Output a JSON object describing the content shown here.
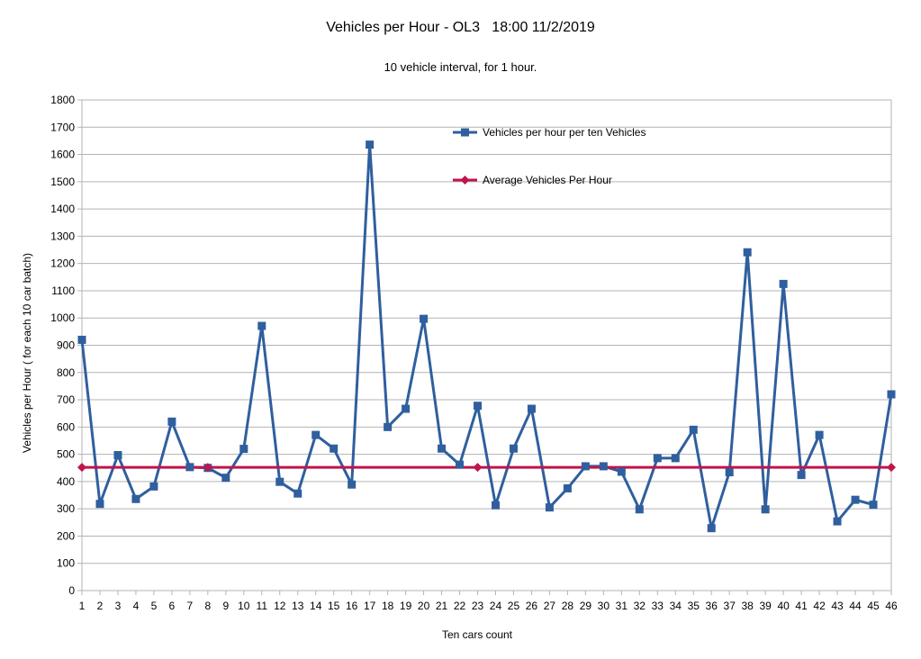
{
  "chart_data": {
    "type": "line",
    "title": "Vehicles per Hour - OL3   18:00 11/2/2019",
    "subtitle": "10 vehicle interval, for 1 hour.",
    "xlabel": "Ten cars count",
    "ylabel": "Vehicles per Hour ( for each 10 car batch)",
    "ylim": [
      0,
      1800
    ],
    "y_ticks": [
      0,
      100,
      200,
      300,
      400,
      500,
      600,
      700,
      800,
      900,
      1000,
      1100,
      1200,
      1300,
      1400,
      1500,
      1600,
      1700,
      1800
    ],
    "grid": true,
    "legend_position": "top-center",
    "x": [
      1,
      2,
      3,
      4,
      5,
      6,
      7,
      8,
      9,
      10,
      11,
      12,
      13,
      14,
      15,
      16,
      17,
      18,
      19,
      20,
      21,
      22,
      23,
      24,
      25,
      26,
      27,
      28,
      29,
      30,
      31,
      32,
      33,
      34,
      35,
      36,
      37,
      38,
      39,
      40,
      41,
      42,
      43,
      44,
      45,
      46
    ],
    "series": [
      {
        "name": "Vehicles per hour per ten Vehicles",
        "color": "#2f5f9e",
        "marker": "square",
        "values": [
          920,
          318,
          497,
          336,
          382,
          620,
          453,
          450,
          414,
          520,
          971,
          399,
          356,
          571,
          521,
          389,
          1636,
          600,
          667,
          997,
          521,
          462,
          678,
          313,
          521,
          667,
          305,
          375,
          456,
          456,
          436,
          298,
          486,
          486,
          590,
          229,
          434,
          1241,
          298,
          1125,
          424,
          571,
          254,
          333,
          315,
          720
        ]
      },
      {
        "name": "Average Vehicles Per Hour",
        "color": "#c0144c",
        "marker": "diamond",
        "values": [
          452,
          452,
          452,
          452,
          452,
          452,
          452,
          452,
          452,
          452,
          452,
          452,
          452,
          452,
          452,
          452,
          452,
          452,
          452,
          452,
          452,
          452,
          452,
          452,
          452,
          452,
          452,
          452,
          452,
          452,
          452,
          452,
          452,
          452,
          452,
          452,
          452,
          452,
          452,
          452,
          452,
          452,
          452,
          452,
          452,
          452
        ],
        "marker_indices": [
          0,
          7,
          22,
          45
        ]
      }
    ]
  }
}
